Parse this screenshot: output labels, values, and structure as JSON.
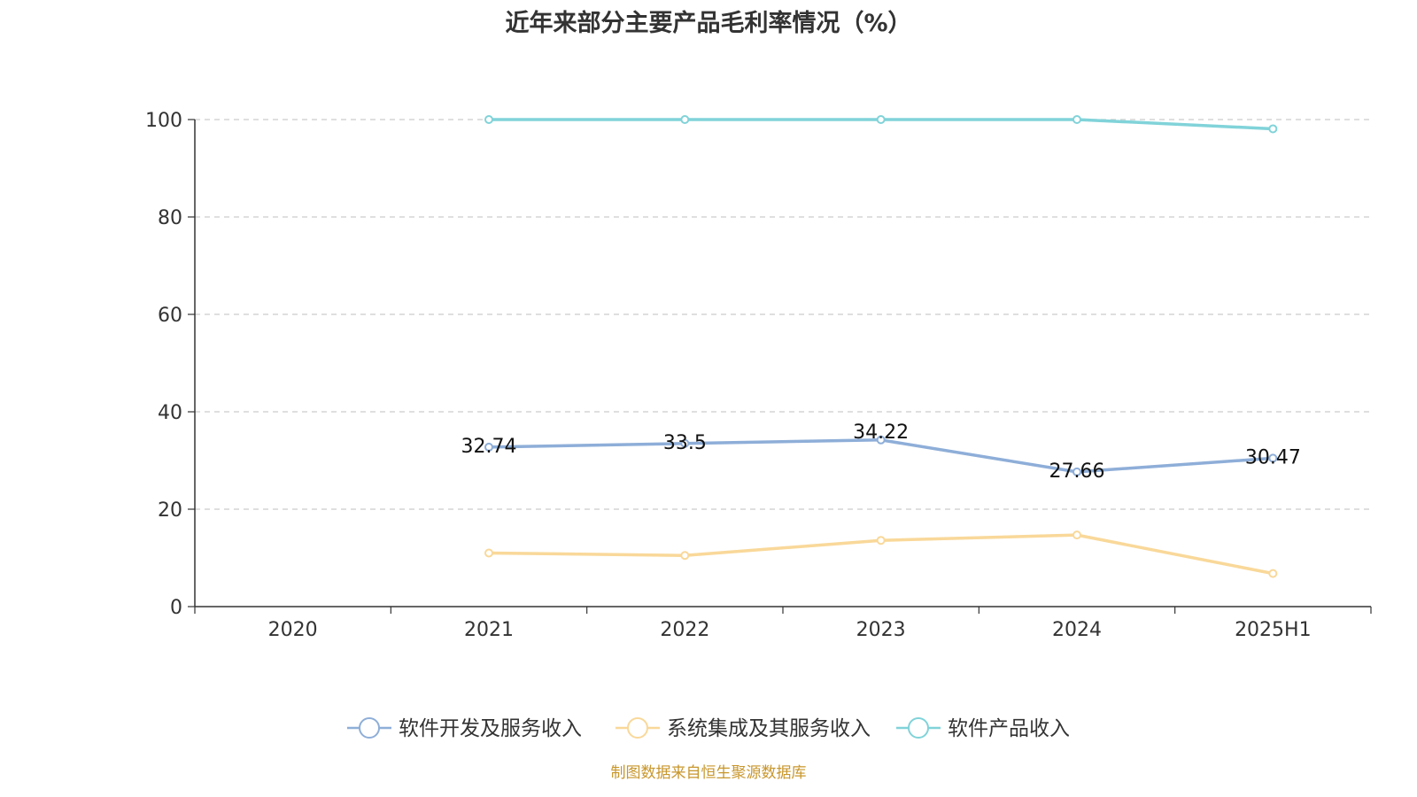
{
  "chart_data": {
    "type": "line",
    "title": "近年来部分主要产品毛利率情况（%）",
    "categories": [
      "2020",
      "2021",
      "2022",
      "2023",
      "2024",
      "2025H1"
    ],
    "ylim": [
      0,
      100
    ],
    "yticks": [
      0,
      20,
      40,
      60,
      80,
      100
    ],
    "grid": true,
    "legend_position": "bottom",
    "series": [
      {
        "name": "软件开发及服务收入",
        "color": "#8eaed8",
        "values": [
          null,
          32.74,
          33.5,
          34.22,
          27.66,
          30.47
        ],
        "show_labels": true
      },
      {
        "name": "系统集成及其服务收入",
        "color": "#f9d899",
        "values": [
          null,
          11.0,
          10.5,
          13.6,
          14.7,
          6.8
        ],
        "show_labels": false
      },
      {
        "name": "软件产品收入",
        "color": "#80d3d9",
        "values": [
          null,
          100,
          100,
          100,
          100,
          98.1
        ],
        "show_labels": false
      }
    ],
    "source": "制图数据来自恒生聚源数据库"
  }
}
